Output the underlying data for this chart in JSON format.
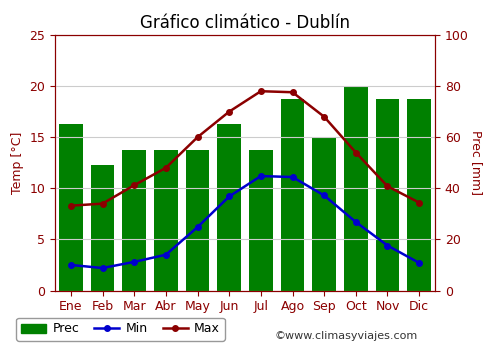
{
  "title": "Gráfico climático - Dublín",
  "months": [
    "Ene",
    "Feb",
    "Mar",
    "Abr",
    "May",
    "Jun",
    "Jul",
    "Ago",
    "Sep",
    "Oct",
    "Nov",
    "Dic"
  ],
  "prec": [
    65,
    49,
    55,
    55,
    55,
    65,
    55,
    75,
    60,
    80,
    75,
    75
  ],
  "temp_min": [
    2.5,
    2.2,
    2.8,
    3.5,
    6.2,
    9.2,
    11.2,
    11.1,
    9.3,
    6.7,
    4.4,
    2.7
  ],
  "temp_max": [
    8.3,
    8.5,
    10.3,
    12.0,
    15.0,
    17.5,
    19.5,
    19.4,
    17.0,
    13.5,
    10.2,
    8.6
  ],
  "bar_color": "#008000",
  "min_color": "#0000CD",
  "max_color": "#8B0000",
  "axis_color": "#8B0000",
  "temp_ylim": [
    0,
    25
  ],
  "prec_ylim": [
    0,
    100
  ],
  "ylabel_left": "Temp [°C]",
  "ylabel_right": "Prec [mm]",
  "watermark": "©www.climasyviajes.com",
  "background_color": "#ffffff",
  "grid_color": "#cccccc",
  "title_fontsize": 12,
  "label_fontsize": 9,
  "tick_fontsize": 9,
  "legend_fontsize": 9
}
